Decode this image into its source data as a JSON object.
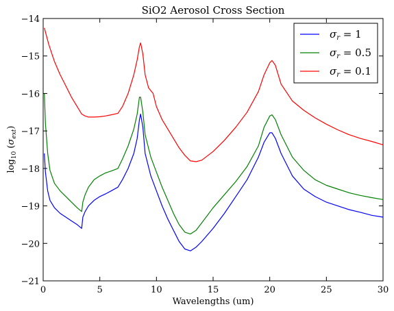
{
  "chart_data": {
    "type": "line",
    "title": "SiO2 Aerosol Cross Section",
    "xlabel": "Wavelengths (um)",
    "ylabel": {
      "prefix": "log",
      "sub": "10",
      "open": " (",
      "sigma": "σ",
      "sigma_sub": "ext",
      "close": ")"
    },
    "xlim": [
      0,
      30
    ],
    "ylim": [
      -21,
      -14
    ],
    "xticks": [
      0,
      5,
      10,
      15,
      20,
      25,
      30
    ],
    "xtick_labels": [
      "0",
      "5",
      "10",
      "15",
      "20",
      "25",
      "30"
    ],
    "yticks": [
      -21,
      -20,
      -19,
      -18,
      -17,
      -16,
      -15,
      -14
    ],
    "ytick_labels": [
      "−21",
      "−20",
      "−19",
      "−18",
      "−17",
      "−16",
      "−15",
      "−14"
    ],
    "grid": false,
    "legend": {
      "placement": "top-right",
      "entries": [
        {
          "sigma": "σ",
          "sub": "r",
          "value": " = 1"
        },
        {
          "sigma": "σ",
          "sub": "r",
          "value": " = 0.5"
        },
        {
          "sigma": "σ",
          "sub": "r",
          "value": " = 0.1"
        }
      ]
    },
    "series": [
      {
        "color": "#0000ff",
        "x": [
          0.1,
          0.2,
          0.4,
          0.6,
          1.0,
          1.5,
          2.0,
          2.5,
          3.0,
          3.4,
          3.5,
          3.7,
          4.0,
          4.5,
          5.0,
          5.5,
          6.0,
          6.6,
          7.0,
          7.5,
          8.0,
          8.3,
          8.5,
          8.6,
          8.8,
          9.0,
          9.5,
          10.0,
          10.5,
          11.0,
          11.5,
          12.0,
          12.5,
          13.0,
          13.5,
          14.0,
          15.0,
          16.0,
          17.0,
          18.0,
          19.0,
          19.5,
          20.0,
          20.2,
          20.5,
          21.0,
          22.0,
          23.0,
          24.0,
          25.0,
          26.0,
          27.0,
          28.0,
          29.0,
          30.0
        ],
        "y": [
          -17.6,
          -18.1,
          -18.6,
          -18.85,
          -19.05,
          -19.2,
          -19.3,
          -19.4,
          -19.5,
          -19.6,
          -19.3,
          -19.15,
          -19.0,
          -18.85,
          -18.75,
          -18.68,
          -18.6,
          -18.5,
          -18.3,
          -18.0,
          -17.6,
          -17.2,
          -16.7,
          -16.55,
          -16.9,
          -17.6,
          -18.2,
          -18.6,
          -19.0,
          -19.35,
          -19.65,
          -19.95,
          -20.15,
          -20.2,
          -20.1,
          -19.95,
          -19.6,
          -19.2,
          -18.75,
          -18.3,
          -17.7,
          -17.3,
          -17.05,
          -17.05,
          -17.2,
          -17.6,
          -18.2,
          -18.55,
          -18.75,
          -18.9,
          -19.0,
          -19.1,
          -19.17,
          -19.25,
          -19.3
        ]
      },
      {
        "color": "#008000",
        "x": [
          0.1,
          0.2,
          0.4,
          0.6,
          1.0,
          1.5,
          2.0,
          2.5,
          3.0,
          3.4,
          3.5,
          3.7,
          4.0,
          4.5,
          5.0,
          5.5,
          6.0,
          6.6,
          7.0,
          7.5,
          8.0,
          8.3,
          8.5,
          8.6,
          8.8,
          9.0,
          9.5,
          10.0,
          10.5,
          11.0,
          11.5,
          12.0,
          12.5,
          13.0,
          13.5,
          14.0,
          15.0,
          16.0,
          17.0,
          18.0,
          19.0,
          19.5,
          20.0,
          20.2,
          20.5,
          21.0,
          22.0,
          23.0,
          24.0,
          25.0,
          26.0,
          27.0,
          28.0,
          29.0,
          30.0
        ],
        "y": [
          -16.0,
          -16.8,
          -17.6,
          -18.05,
          -18.4,
          -18.6,
          -18.75,
          -18.9,
          -19.05,
          -19.15,
          -18.9,
          -18.7,
          -18.5,
          -18.3,
          -18.2,
          -18.12,
          -18.07,
          -18.0,
          -17.75,
          -17.4,
          -16.95,
          -16.55,
          -16.1,
          -16.1,
          -16.5,
          -17.1,
          -17.7,
          -18.1,
          -18.5,
          -18.85,
          -19.2,
          -19.5,
          -19.7,
          -19.75,
          -19.65,
          -19.45,
          -19.05,
          -18.7,
          -18.35,
          -17.95,
          -17.4,
          -16.9,
          -16.6,
          -16.57,
          -16.7,
          -17.1,
          -17.7,
          -18.05,
          -18.3,
          -18.45,
          -18.55,
          -18.65,
          -18.72,
          -18.78,
          -18.83
        ]
      },
      {
        "color": "#ff0000",
        "x": [
          0.1,
          0.5,
          1.0,
          1.5,
          2.0,
          2.5,
          3.0,
          3.4,
          3.7,
          4.0,
          4.5,
          5.0,
          5.5,
          6.0,
          6.6,
          7.0,
          7.5,
          8.0,
          8.3,
          8.5,
          8.6,
          8.8,
          9.0,
          9.3,
          9.7,
          10.0,
          10.5,
          11.0,
          11.5,
          12.0,
          12.5,
          13.0,
          13.5,
          14.0,
          15.0,
          16.0,
          17.0,
          18.0,
          19.0,
          19.5,
          20.0,
          20.2,
          20.5,
          21.0,
          22.0,
          23.0,
          24.0,
          25.0,
          26.0,
          27.0,
          28.0,
          29.0,
          30.0
        ],
        "y": [
          -14.25,
          -14.7,
          -15.15,
          -15.5,
          -15.8,
          -16.1,
          -16.35,
          -16.55,
          -16.6,
          -16.63,
          -16.63,
          -16.62,
          -16.6,
          -16.57,
          -16.53,
          -16.35,
          -16.0,
          -15.5,
          -15.1,
          -14.75,
          -14.65,
          -14.95,
          -15.5,
          -15.85,
          -16.0,
          -16.35,
          -16.7,
          -16.95,
          -17.2,
          -17.45,
          -17.65,
          -17.8,
          -17.82,
          -17.78,
          -17.55,
          -17.25,
          -16.9,
          -16.5,
          -15.95,
          -15.5,
          -15.18,
          -15.12,
          -15.25,
          -15.75,
          -16.2,
          -16.45,
          -16.65,
          -16.82,
          -16.97,
          -17.1,
          -17.2,
          -17.28,
          -17.37
        ]
      }
    ]
  }
}
